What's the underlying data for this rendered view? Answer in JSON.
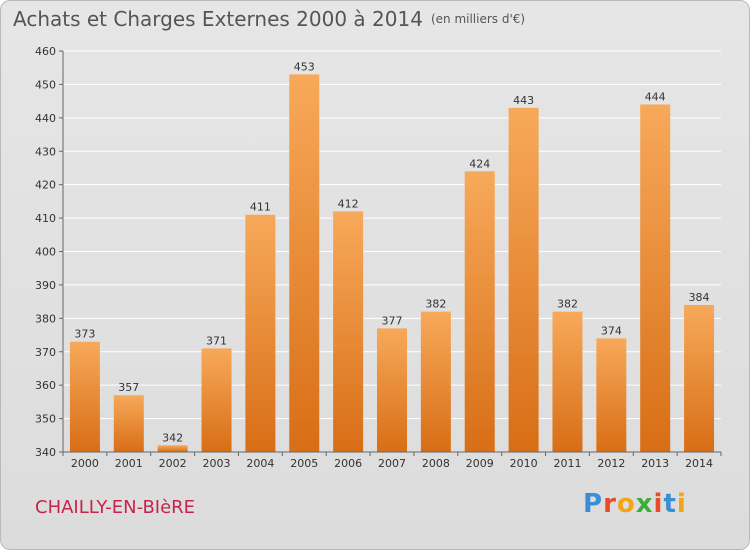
{
  "header": {
    "title": "Achats et Charges Externes 2000 à 2014",
    "unit": "(en milliers d'€)"
  },
  "footer": {
    "city": "CHAILLY-EN-BIèRE",
    "logo": "Proxiti"
  },
  "colors": {
    "bar_light": "#f7a95a",
    "bar_dark": "#d86e16",
    "grid": "#ffffff",
    "axis_text": "#333333"
  },
  "chart_data": {
    "type": "bar",
    "title": "Achats et Charges Externes 2000 à 2014",
    "subtitle": "(en milliers d'€)",
    "categories": [
      "2000",
      "2001",
      "2002",
      "2003",
      "2004",
      "2005",
      "2006",
      "2007",
      "2008",
      "2009",
      "2010",
      "2011",
      "2012",
      "2013",
      "2014"
    ],
    "values": [
      373,
      357,
      342,
      371,
      411,
      453,
      412,
      377,
      382,
      424,
      443,
      382,
      374,
      444,
      384
    ],
    "ylim": [
      340,
      460
    ],
    "yticks": [
      340,
      350,
      360,
      370,
      380,
      390,
      400,
      410,
      420,
      430,
      440,
      450,
      460
    ],
    "grid": true,
    "legend": "none"
  }
}
